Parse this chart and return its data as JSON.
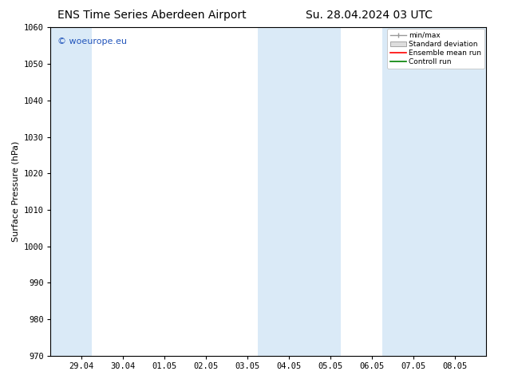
{
  "title_left": "ENS Time Series Aberdeen Airport",
  "title_right": "Su. 28.04.2024 03 UTC",
  "ylabel": "Surface Pressure (hPa)",
  "ylim": [
    970,
    1060
  ],
  "yticks": [
    970,
    980,
    990,
    1000,
    1010,
    1020,
    1030,
    1040,
    1050,
    1060
  ],
  "x_labels": [
    "29.04",
    "30.04",
    "01.05",
    "02.05",
    "03.05",
    "04.05",
    "05.05",
    "06.05",
    "07.05",
    "08.05"
  ],
  "x_positions": [
    0,
    1,
    2,
    3,
    4,
    5,
    6,
    7,
    8,
    9
  ],
  "xlim": [
    -0.75,
    9.75
  ],
  "shaded_bands": [
    {
      "x_start": -0.75,
      "x_end": 0.25,
      "color": "#daeaf7"
    },
    {
      "x_start": 4.25,
      "x_end": 6.25,
      "color": "#daeaf7"
    },
    {
      "x_start": 7.25,
      "x_end": 9.75,
      "color": "#daeaf7"
    }
  ],
  "legend_labels": [
    "min/max",
    "Standard deviation",
    "Ensemble mean run",
    "Controll run"
  ],
  "legend_colors_lines": [
    "#999999",
    "#cccccc",
    "#ff0000",
    "#008000"
  ],
  "watermark": "© woeurope.eu",
  "watermark_color": "#2255bb",
  "background_color": "#ffffff",
  "plot_bg_color": "#ffffff",
  "title_fontsize": 10,
  "label_fontsize": 8,
  "tick_fontsize": 7.5
}
